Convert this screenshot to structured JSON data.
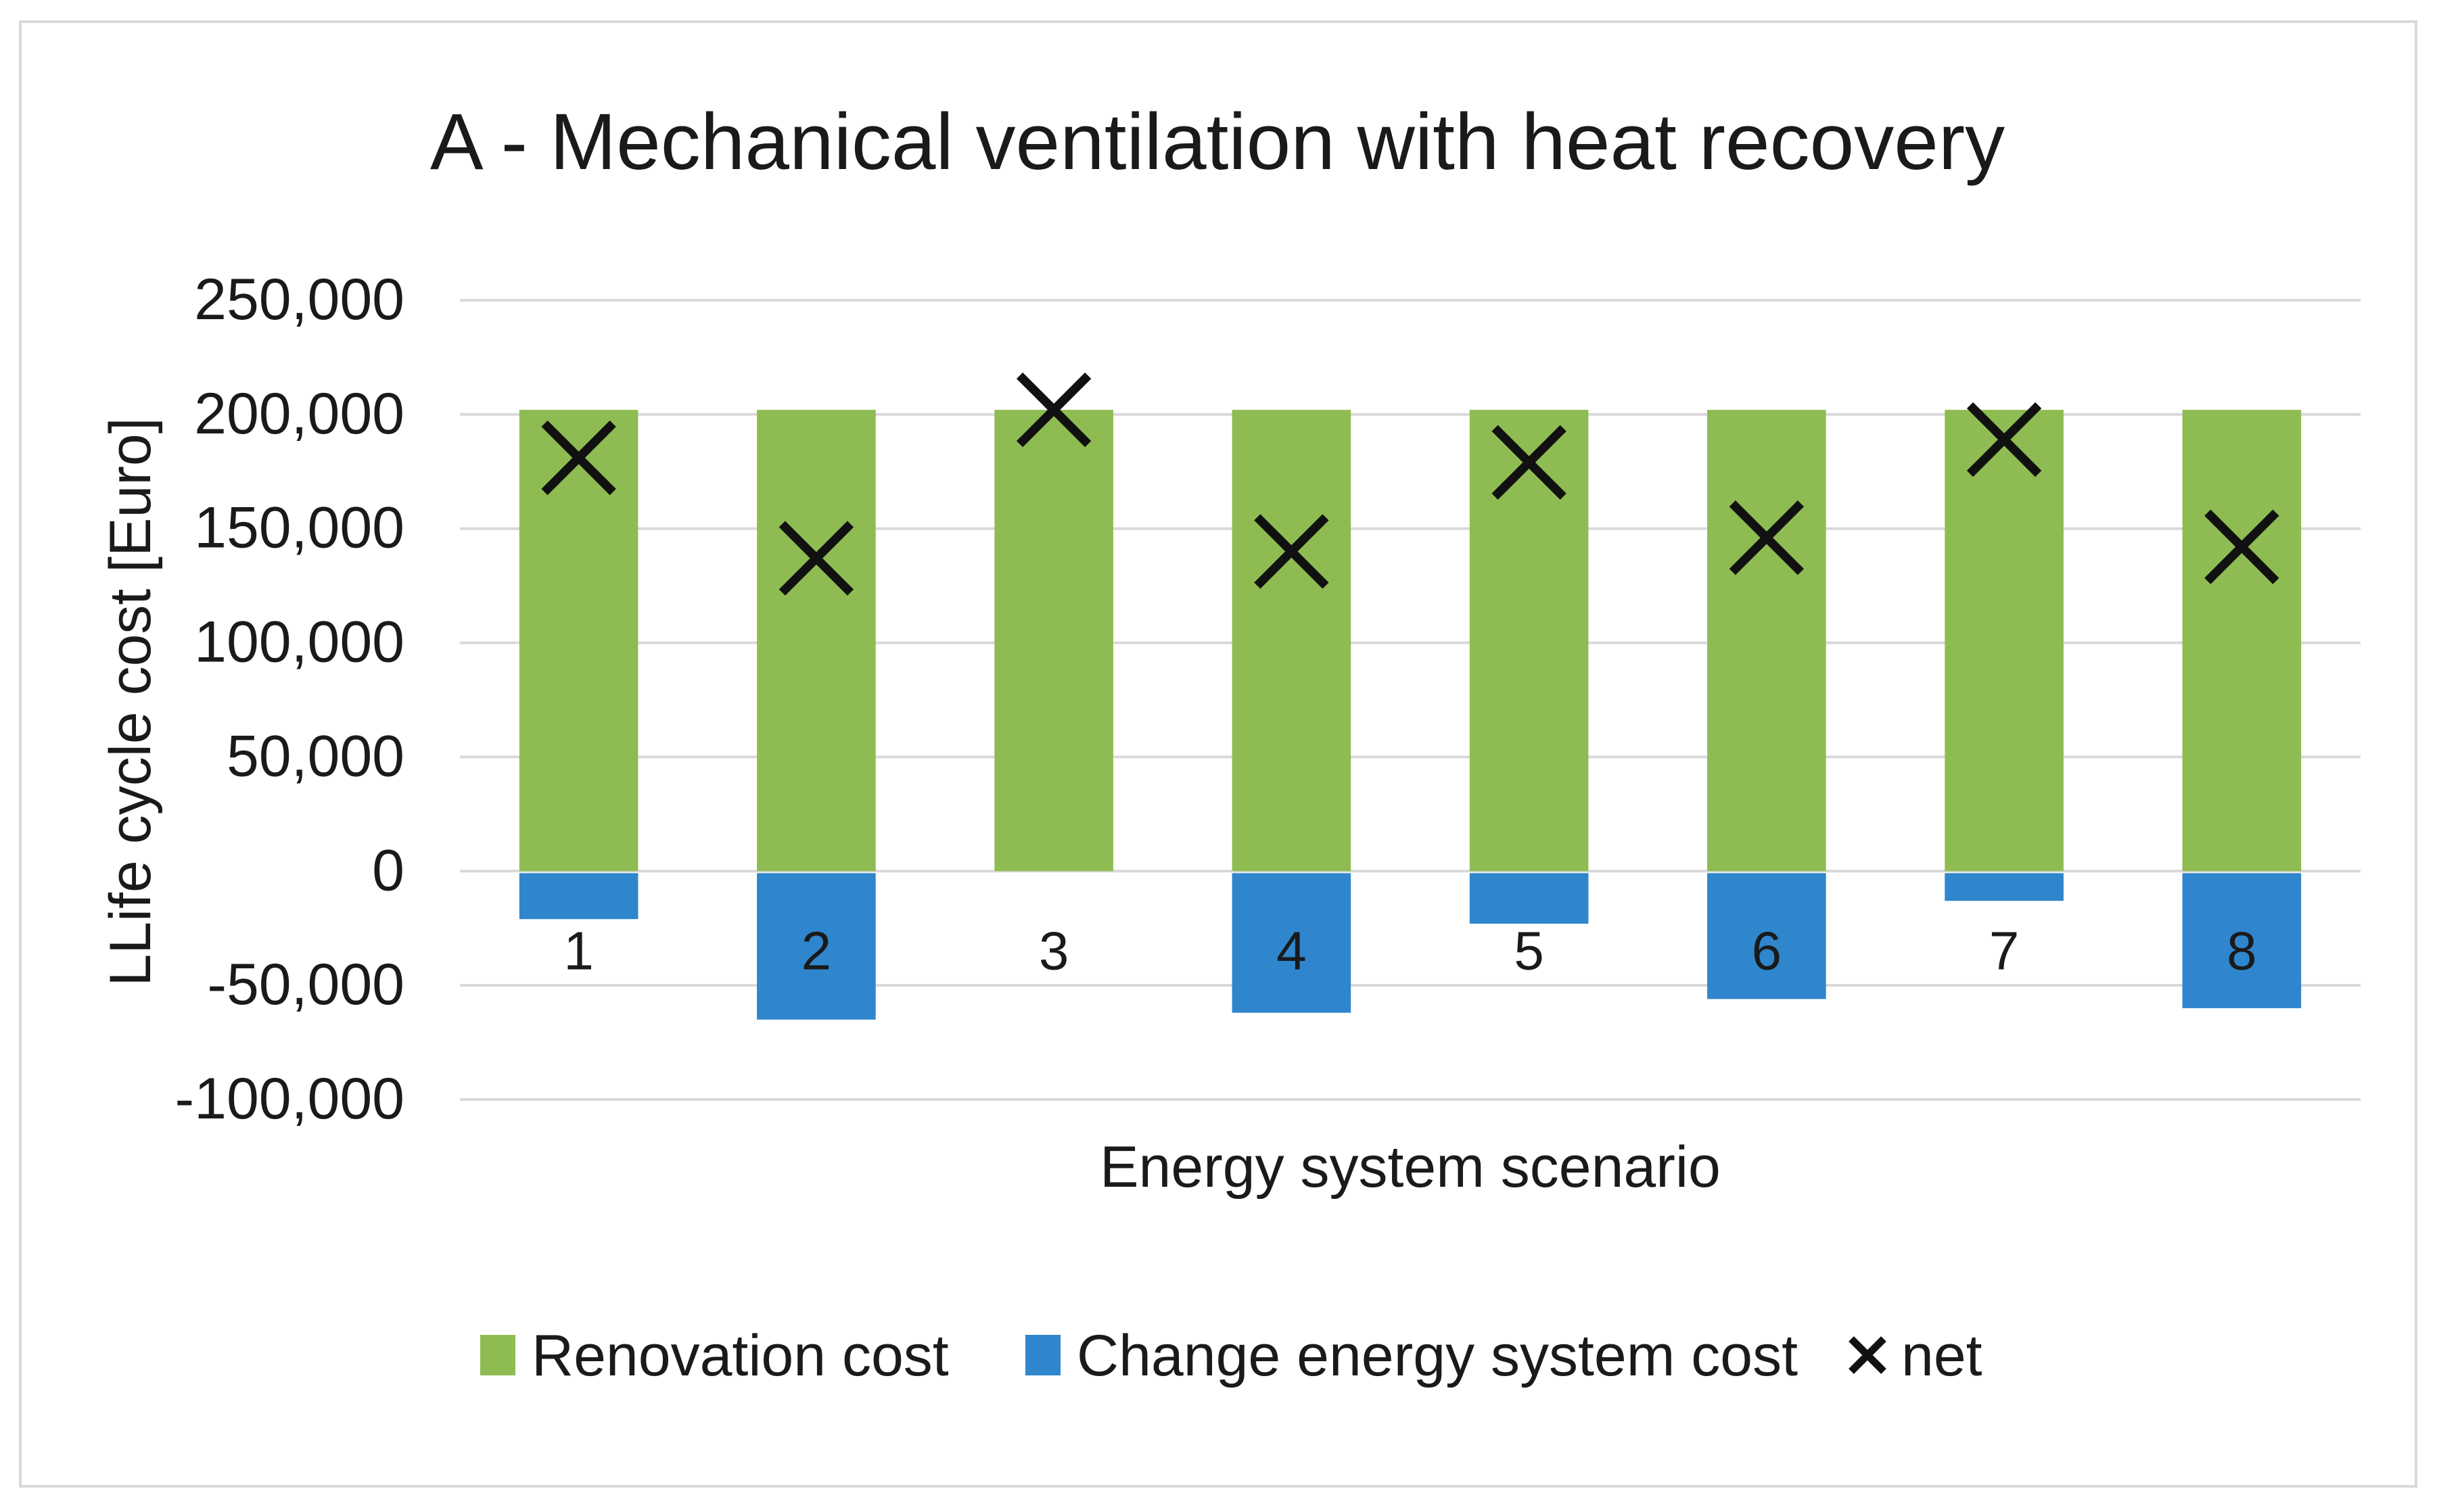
{
  "chart_data": {
    "type": "bar",
    "title": "A - Mechanical ventilation with heat recovery",
    "xlabel": "Energy system scenario",
    "ylabel": "LLife cycle cost [Euro]",
    "categories": [
      "1",
      "2",
      "3",
      "4",
      "5",
      "6",
      "7",
      "8"
    ],
    "ylim": [
      -100000,
      250000
    ],
    "yticks": [
      250000,
      200000,
      150000,
      100000,
      50000,
      0,
      -50000,
      -100000
    ],
    "ytick_labels": [
      "250,000",
      "200,000",
      "150,000",
      "100,000",
      "50,000",
      "0",
      "-50,000",
      "-100,000"
    ],
    "grid": true,
    "legend_position": "bottom",
    "series": [
      {
        "name": "Renovation cost",
        "kind": "bar",
        "color": "#8fbc52",
        "values": [
          202000,
          202000,
          202000,
          202000,
          202000,
          202000,
          202000,
          202000
        ]
      },
      {
        "name": "Change energy system cost",
        "kind": "bar",
        "color": "#2f86cc",
        "values": [
          -21000,
          -65000,
          0,
          -62000,
          -23000,
          -56000,
          -13000,
          -60000
        ]
      },
      {
        "name": "net",
        "kind": "marker",
        "marker": "x",
        "color": "#111111",
        "values": [
          181000,
          137000,
          202000,
          140000,
          179000,
          146000,
          189000,
          142000
        ]
      }
    ]
  }
}
